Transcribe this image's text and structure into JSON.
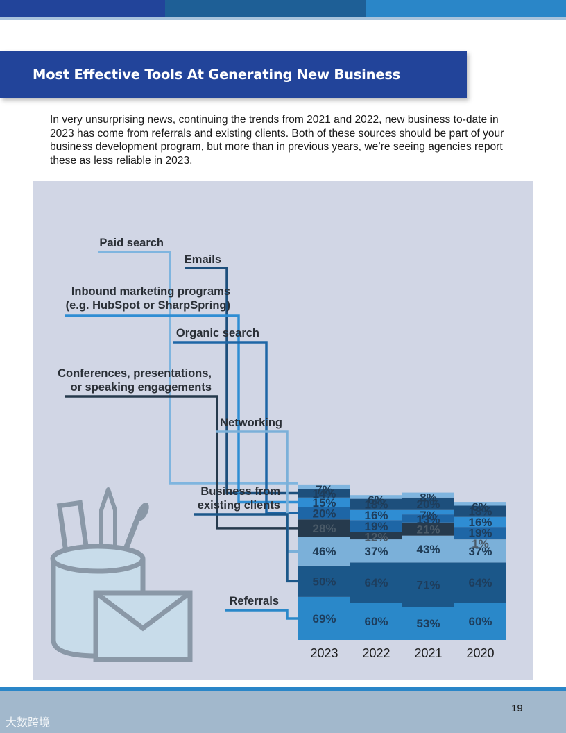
{
  "header": {
    "title": "Most Effective Tools At Generating New Business",
    "bar_colors": [
      "#22449a",
      "#1e5f96",
      "#2a86c8"
    ]
  },
  "intro_text": "In very unsurprising news, continuing the trends from 2021 and 2022, new business to-date in 2023 has come from referrals and existing clients. Both of these sources should be part of your business development program, but more than in previous years, we’re seeing agencies report these as less reliable in 2023.",
  "chart_data": {
    "type": "bar",
    "stacked": true,
    "categories": [
      "2023",
      "2022",
      "2021",
      "2020"
    ],
    "series": [
      {
        "name": "Referrals",
        "values": [
          69,
          60,
          53,
          60
        ],
        "color": "#2a88c9"
      },
      {
        "name": "Business from existing clients",
        "values": [
          50,
          64,
          71,
          64
        ],
        "color": "#1b5789"
      },
      {
        "name": "Networking",
        "values": [
          46,
          37,
          43,
          37
        ],
        "color": "#7bb0d9"
      },
      {
        "name": "Conferences, presentations, or speaking engagements",
        "values": [
          28,
          12,
          21,
          1
        ],
        "color": "#263a4d"
      },
      {
        "name": "Organic search",
        "values": [
          20,
          19,
          13,
          19
        ],
        "color": "#1e66a6"
      },
      {
        "name": "Inbound marketing programs (e.g. HubSpot or SharpSpring)",
        "values": [
          15,
          16,
          7,
          16
        ],
        "color": "#2f8dd3"
      },
      {
        "name": "Emails",
        "values": [
          14,
          18,
          20,
          18
        ],
        "color": "#1d4f7c"
      },
      {
        "name": "Paid search",
        "values": [
          7,
          6,
          8,
          6
        ],
        "color": "#7fb5df"
      }
    ],
    "legend_lines": [
      [
        "Paid search"
      ],
      [
        "Emails"
      ],
      [
        "Inbound marketing programs",
        "(e.g. HubSpot or SharpSpring)"
      ],
      [
        "Organic search"
      ],
      [
        "Conferences, presentations,",
        "or speaking engagements"
      ],
      [
        "Networking"
      ],
      [
        "Business from",
        "existing clients"
      ],
      [
        "Referrals"
      ]
    ],
    "value_suffix": "%",
    "legend_placement": "left",
    "grid": false
  },
  "decor": {
    "icon": "pencil-cup-envelope-icon"
  },
  "footer": {
    "page_number": "19",
    "watermark": "大数跨境"
  }
}
